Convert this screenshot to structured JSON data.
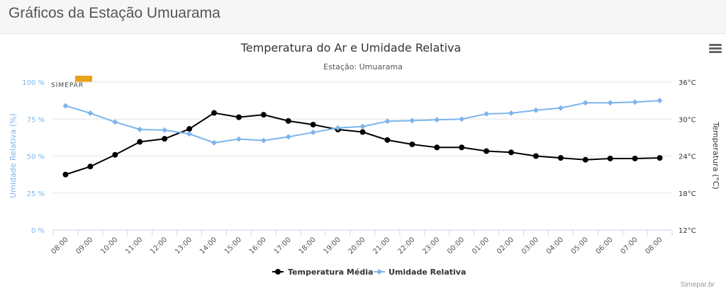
{
  "page": {
    "title": "Gráficos da Estação Umuarama"
  },
  "credit": "Simepar.br",
  "logo": {
    "text": "SIMEPAR",
    "color": "#e8a21a"
  },
  "colors": {
    "temperature": "#000000",
    "humidity": "#7cb5ec",
    "left_axis": "#7cb5ec",
    "grid": "#e6e6e6"
  },
  "icons": {
    "menu": "hamburger-icon"
  },
  "chart_data": {
    "type": "line",
    "title": "Temperatura do Ar e Umidade Relativa",
    "subtitle": "Estação: Umuarama",
    "categories": [
      "08:00",
      "09:00",
      "10:00",
      "11:00",
      "12:00",
      "13:00",
      "14:00",
      "15:00",
      "16:00",
      "17:00",
      "18:00",
      "19:00",
      "20:00",
      "21:00",
      "22:00",
      "23:00",
      "00:00",
      "01:00",
      "02:00",
      "03:00",
      "04:00",
      "05:00",
      "06:00",
      "07:00",
      "08:00"
    ],
    "y_left": {
      "label": "Umidade Relativa (%)",
      "min": 0,
      "max": 100,
      "ticks": [
        "0 %",
        "25 %",
        "50 %",
        "75 %",
        "100 %"
      ]
    },
    "y_right": {
      "label": "Temperatura (°C)",
      "min": 12,
      "max": 36,
      "ticks": [
        "12°C",
        "18°C",
        "24°C",
        "30°C",
        "36°C"
      ]
    },
    "grid": true,
    "legend": "bottom-center",
    "series": [
      {
        "name": "Temperatura Média",
        "axis": "right",
        "color": "#000000",
        "values": [
          21.0,
          22.3,
          24.2,
          26.3,
          26.8,
          28.4,
          31.0,
          30.3,
          30.7,
          29.7,
          29.1,
          28.3,
          27.9,
          26.6,
          25.9,
          25.4,
          25.4,
          24.8,
          24.6,
          24.0,
          23.7,
          23.4,
          23.6,
          23.6,
          23.7
        ]
      },
      {
        "name": "Umidade Relativa",
        "axis": "left",
        "color": "#7cb5ec",
        "values": [
          84,
          79,
          73,
          68,
          67.5,
          65,
          59,
          61.5,
          60.5,
          63,
          66,
          69,
          70,
          73.5,
          74,
          74.5,
          75,
          78.5,
          79,
          81,
          82.5,
          86,
          86,
          86.5,
          87.5
        ]
      }
    ]
  }
}
